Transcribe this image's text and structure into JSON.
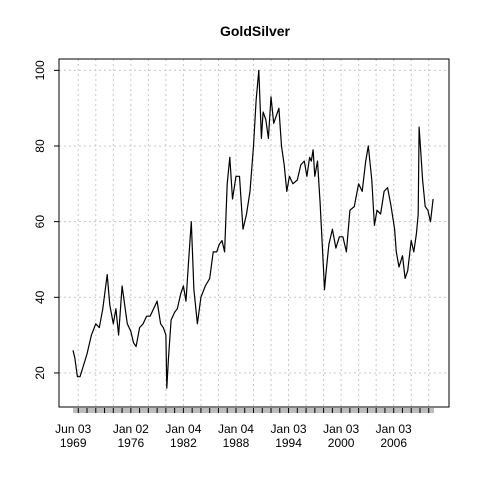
{
  "chart_data": {
    "type": "line",
    "title": "GoldSilver",
    "xlabel": "",
    "ylabel": "",
    "grid": true,
    "x_range": [
      1969.4,
      2010.6
    ],
    "ylim": [
      11,
      103
    ],
    "y_ticks": [
      20,
      40,
      60,
      80,
      100
    ],
    "x_ticks": [
      {
        "line1": "Jun 03",
        "line2": "1969",
        "year": 1969.42
      },
      {
        "line1": "Jan 02",
        "line2": "1976",
        "year": 1976.0
      },
      {
        "line1": "Jan 04",
        "line2": "1982",
        "year": 1982.0
      },
      {
        "line1": "Jan 04",
        "line2": "1988",
        "year": 1988.0
      },
      {
        "line1": "Jan 03",
        "line2": "1994",
        "year": 1994.0
      },
      {
        "line1": "Jan 03",
        "line2": "2000",
        "year": 2000.0
      },
      {
        "line1": "Jan 03",
        "line2": "2006",
        "year": 2006.0
      }
    ],
    "series": [
      {
        "color": "#000000",
        "x": [
          1969.4,
          1969.6,
          1969.9,
          1970.2,
          1970.6,
          1971.0,
          1971.5,
          1972.0,
          1972.4,
          1972.8,
          1973.3,
          1973.6,
          1974.0,
          1974.3,
          1974.6,
          1975.0,
          1975.3,
          1975.6,
          1976.0,
          1976.3,
          1976.6,
          1977.0,
          1977.4,
          1977.8,
          1978.2,
          1978.6,
          1979.0,
          1979.4,
          1979.7,
          1980.0,
          1980.1,
          1980.3,
          1980.6,
          1981.0,
          1981.3,
          1981.7,
          1982.0,
          1982.3,
          1982.6,
          1982.9,
          1983.2,
          1983.6,
          1984.0,
          1984.5,
          1985.0,
          1985.4,
          1985.8,
          1986.1,
          1986.4,
          1986.7,
          1987.0,
          1987.3,
          1987.6,
          1988.0,
          1988.4,
          1988.8,
          1989.2,
          1989.6,
          1990.0,
          1990.3,
          1990.6,
          1990.9,
          1991.1,
          1991.4,
          1991.7,
          1992.0,
          1992.3,
          1992.6,
          1992.9,
          1993.2,
          1993.5,
          1993.8,
          1994.1,
          1994.5,
          1995.0,
          1995.4,
          1995.8,
          1996.1,
          1996.4,
          1996.6,
          1996.8,
          1997.0,
          1997.3,
          1997.6,
          1998.0,
          1998.1,
          1998.3,
          1998.6,
          1999.0,
          1999.4,
          1999.8,
          2000.2,
          2000.6,
          2001.0,
          2001.5,
          2002.0,
          2002.4,
          2002.8,
          2003.1,
          2003.5,
          2003.8,
          2004.1,
          2004.5,
          2004.9,
          2005.3,
          2005.7,
          2006.1,
          2006.3,
          2006.6,
          2007.0,
          2007.3,
          2007.6,
          2008.0,
          2008.3,
          2008.6,
          2008.8,
          2008.9,
          2009.1,
          2009.3,
          2009.6,
          2009.9,
          2010.2,
          2010.5
        ],
        "y": [
          26,
          24,
          19,
          19,
          22,
          25,
          30,
          33,
          32,
          37,
          46,
          38,
          33,
          37,
          30,
          43,
          38,
          33,
          31,
          28,
          27,
          32,
          33,
          35,
          35,
          37,
          39,
          33,
          32,
          30,
          16,
          24,
          34,
          36,
          37,
          41,
          43,
          39,
          50,
          60,
          42,
          33,
          40,
          43,
          45,
          52,
          52,
          54,
          55,
          52,
          70,
          77,
          66,
          72,
          72,
          58,
          62,
          68,
          80,
          92,
          100,
          82,
          89,
          87,
          82,
          93,
          86,
          88,
          90,
          80,
          75,
          68,
          72,
          70,
          71,
          75,
          76,
          72,
          77,
          76,
          79,
          72,
          76,
          65,
          47,
          42,
          47,
          54,
          58,
          53,
          56,
          56,
          52,
          63,
          64,
          70,
          68,
          76,
          80,
          71,
          59,
          63,
          62,
          68,
          69,
          64,
          58,
          52,
          48,
          51,
          45,
          47,
          55,
          52,
          57,
          62,
          85,
          78,
          71,
          64,
          63,
          60,
          66
        ]
      }
    ]
  }
}
